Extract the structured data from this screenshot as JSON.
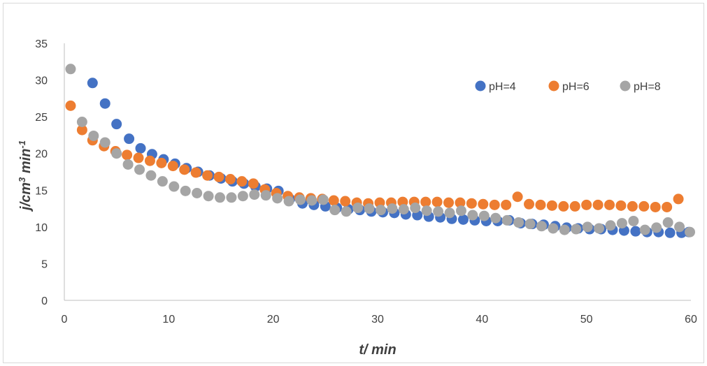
{
  "chart_data": {
    "type": "scatter",
    "xlabel": "t/ min",
    "ylabel_main": "j/cm",
    "ylabel_sup1": "3",
    "ylabel_mid": " min",
    "ylabel_sup2": "-1",
    "xlim": [
      0,
      60
    ],
    "ylim": [
      0,
      35
    ],
    "xticks": [
      0,
      10,
      20,
      30,
      40,
      50,
      60
    ],
    "yticks": [
      0,
      5,
      10,
      15,
      20,
      25,
      30,
      35
    ],
    "grid": false,
    "legend_position": "top-right",
    "series": [
      {
        "name": "pH=4",
        "color": "#4472C4",
        "x": [
          2.7,
          3.9,
          5.0,
          6.2,
          7.3,
          8.4,
          9.5,
          10.6,
          11.7,
          12.8,
          13.9,
          15.0,
          16.1,
          17.2,
          18.3,
          19.4,
          20.5,
          21.6,
          22.8,
          23.9,
          25.0,
          26.1,
          27.2,
          28.3,
          29.4,
          30.5,
          31.6,
          32.7,
          33.8,
          34.9,
          36.0,
          37.1,
          38.2,
          39.3,
          40.4,
          41.5,
          42.6,
          43.7,
          44.8,
          45.9,
          47.0,
          48.1,
          49.2,
          50.3,
          51.4,
          52.5,
          53.6,
          54.7,
          55.8,
          56.9,
          58.0,
          59.1,
          59.8
        ],
        "y": [
          29.6,
          26.8,
          24.0,
          22.0,
          20.7,
          19.9,
          19.2,
          18.6,
          18.0,
          17.5,
          17.0,
          16.6,
          16.2,
          15.9,
          15.5,
          15.2,
          14.9,
          13.8,
          13.2,
          13.0,
          12.8,
          12.6,
          12.4,
          12.3,
          12.1,
          12.0,
          11.9,
          11.7,
          11.6,
          11.4,
          11.3,
          11.1,
          11.0,
          10.9,
          10.8,
          10.8,
          10.9,
          10.5,
          10.4,
          10.3,
          10.1,
          9.9,
          9.8,
          9.7,
          9.7,
          9.6,
          9.5,
          9.4,
          9.3,
          9.3,
          9.2,
          9.2,
          9.3
        ]
      },
      {
        "name": "pH=6",
        "color": "#ED7D31",
        "x": [
          0.6,
          1.7,
          2.7,
          3.8,
          4.9,
          6.0,
          7.1,
          8.2,
          9.3,
          10.4,
          11.5,
          12.6,
          13.7,
          14.8,
          15.9,
          17.0,
          18.1,
          19.2,
          20.3,
          21.4,
          22.5,
          23.6,
          24.7,
          25.8,
          26.9,
          28.0,
          29.1,
          30.2,
          31.3,
          32.4,
          33.5,
          34.6,
          35.7,
          36.8,
          37.9,
          39.0,
          40.1,
          41.2,
          42.3,
          43.4,
          44.5,
          45.6,
          46.7,
          47.8,
          48.9,
          50.0,
          51.1,
          52.2,
          53.3,
          54.4,
          55.5,
          56.6,
          57.7,
          58.8
        ],
        "y": [
          26.5,
          23.2,
          21.8,
          21.0,
          20.3,
          19.8,
          19.4,
          19.0,
          18.7,
          18.3,
          17.8,
          17.4,
          17.0,
          16.8,
          16.5,
          16.2,
          15.9,
          15.1,
          14.6,
          14.2,
          14.0,
          13.9,
          13.8,
          13.6,
          13.5,
          13.3,
          13.2,
          13.3,
          13.3,
          13.4,
          13.4,
          13.4,
          13.4,
          13.3,
          13.3,
          13.2,
          13.1,
          13.0,
          13.0,
          14.1,
          13.1,
          13.0,
          12.9,
          12.8,
          12.8,
          13.0,
          13.0,
          13.0,
          12.9,
          12.8,
          12.8,
          12.7,
          12.7,
          13.8
        ]
      },
      {
        "name": "pH=8",
        "color": "#A5A5A5",
        "x": [
          0.6,
          1.7,
          2.8,
          3.9,
          5.0,
          6.1,
          7.2,
          8.3,
          9.4,
          10.5,
          11.6,
          12.7,
          13.8,
          14.9,
          16.0,
          17.1,
          18.2,
          19.3,
          20.4,
          21.5,
          22.6,
          23.7,
          24.8,
          25.9,
          27.0,
          28.1,
          29.2,
          30.3,
          31.4,
          32.5,
          33.6,
          34.7,
          35.8,
          36.9,
          38.0,
          39.1,
          40.2,
          41.3,
          42.4,
          43.5,
          44.6,
          45.7,
          46.8,
          47.9,
          49.0,
          50.1,
          51.2,
          52.3,
          53.4,
          54.5,
          55.6,
          56.7,
          57.8,
          58.9,
          59.9
        ],
        "y": [
          31.5,
          24.3,
          22.4,
          21.5,
          20.0,
          18.5,
          17.8,
          17.0,
          16.2,
          15.5,
          14.9,
          14.6,
          14.2,
          14.0,
          14.0,
          14.2,
          14.4,
          14.3,
          13.9,
          13.5,
          13.7,
          13.6,
          13.7,
          12.3,
          12.1,
          12.6,
          12.5,
          12.3,
          12.5,
          12.4,
          12.6,
          12.2,
          12.1,
          11.9,
          12.2,
          11.6,
          11.5,
          11.2,
          10.9,
          10.6,
          10.4,
          10.1,
          9.8,
          9.6,
          9.7,
          10.0,
          9.8,
          10.2,
          10.5,
          10.8,
          9.6,
          9.9,
          10.6,
          10.0,
          9.3
        ]
      }
    ]
  }
}
